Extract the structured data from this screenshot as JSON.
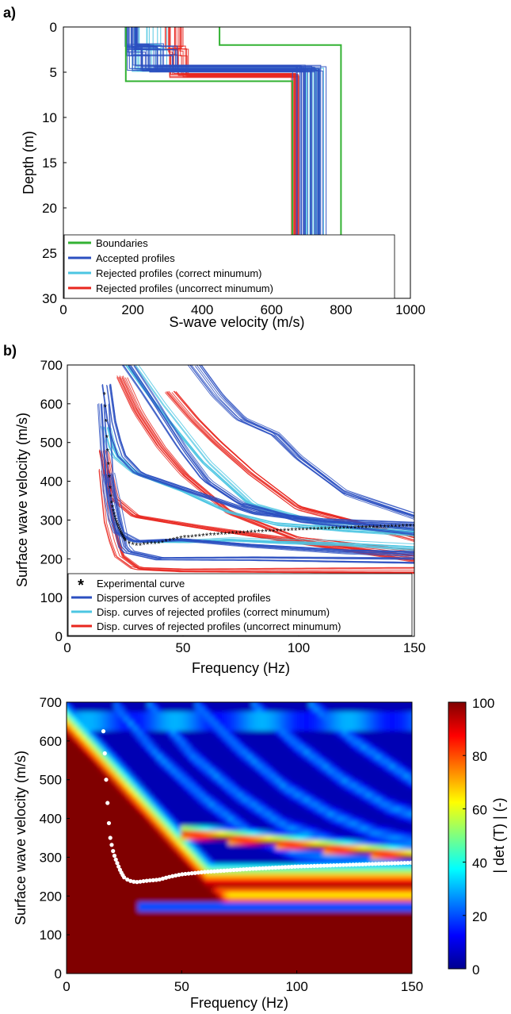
{
  "panels": {
    "a": "a)",
    "b": "b)"
  },
  "chart_data": [
    {
      "type": "line",
      "id": "panel-a",
      "xlabel": "S-wave velocity (m/s)",
      "ylabel": "Depth (m)",
      "xlim": [
        0,
        1000
      ],
      "ylim": [
        30,
        0
      ],
      "y_reversed": true,
      "x_ticks": [
        0,
        200,
        400,
        600,
        800,
        1000
      ],
      "y_ticks": [
        0,
        5,
        10,
        15,
        20,
        25,
        30
      ],
      "legend_position": "bottom-left",
      "legend": [
        {
          "label": "Boundaries",
          "color": "#33b233"
        },
        {
          "label": "Accepted profiles",
          "color": "#2b4fc0"
        },
        {
          "label": "Rejected profiles (correct minumum)",
          "color": "#4cc6e2"
        },
        {
          "label": "Rejected profiles (uncorrect minumum)",
          "color": "#e8261e"
        }
      ],
      "series": [
        {
          "name": "Boundaries",
          "color": "#33b233",
          "profiles": [
            {
              "vs": [
                450,
                450,
                800,
                800
              ],
              "depth": [
                0,
                2,
                2,
                30
              ]
            },
            {
              "vs": [
                180,
                180,
                660,
                660
              ],
              "depth": [
                0,
                6,
                6,
                30
              ]
            }
          ]
        },
        {
          "name": "Accepted profiles",
          "color": "#2b4fc0",
          "profiles_stepwise": {
            "layer1_vs": [
              175,
              215
            ],
            "layer1_bottom": [
              1.8,
              3.2
            ],
            "layer2_vs": [
              180,
              330
            ],
            "layer2_bottom": [
              4.2,
              5.0
            ],
            "halfspace_vs": [
              660,
              760
            ]
          }
        },
        {
          "name": "Rejected profiles (correct minumum)",
          "color": "#4cc6e2",
          "profiles_stepwise": {
            "layer1_vs": [
              185,
              300
            ],
            "layer1_bottom": [
              1.8,
              2.6
            ],
            "layer2_vs": [
              195,
              300
            ],
            "layer2_bottom": [
              4.4,
              5.0
            ],
            "halfspace_vs": [
              680,
              770
            ]
          }
        },
        {
          "name": "Rejected profiles (uncorrect minumum)",
          "color": "#e8261e",
          "profiles_stepwise": {
            "layer1_vs": [
              290,
              350
            ],
            "layer1_bottom": [
              2.0,
              3.2
            ],
            "layer2_vs": [
              300,
              360
            ],
            "layer2_bottom": [
              5.0,
              5.6
            ],
            "halfspace_vs": [
              655,
              690
            ]
          }
        }
      ]
    },
    {
      "type": "line",
      "id": "panel-b",
      "xlabel": "Frequency (Hz)",
      "ylabel": "Surface wave velocity (m/s)",
      "xlim": [
        0,
        150
      ],
      "ylim": [
        0,
        700
      ],
      "x_ticks": [
        0,
        50,
        100,
        150
      ],
      "y_ticks": [
        0,
        100,
        200,
        300,
        400,
        500,
        600,
        700
      ],
      "legend_position": "bottom-left",
      "legend": [
        {
          "label": "Experimental curve",
          "color": "#000000",
          "marker": "*"
        },
        {
          "label": "Dispersion curves of accepted profiles",
          "color": "#2b4fc0"
        },
        {
          "label": "Disp. curves of rejected profiles (correct minumum)",
          "color": "#4cc6e2"
        },
        {
          "label": "Disp. curves of rejected profiles (uncorrect minumum)",
          "color": "#e8261e"
        }
      ],
      "experimental_curve": {
        "x": [
          16,
          16.5,
          17,
          17.5,
          18,
          18.5,
          19,
          20,
          21,
          22,
          23,
          24,
          25,
          27,
          29,
          31,
          33,
          36,
          40,
          45,
          50,
          60,
          70,
          80,
          90,
          100,
          110,
          120,
          130,
          140,
          150
        ],
        "y": [
          625,
          580,
          520,
          470,
          420,
          380,
          350,
          320,
          300,
          285,
          270,
          258,
          248,
          240,
          237,
          236,
          238,
          240,
          242,
          250,
          256,
          262,
          266,
          270,
          273,
          276,
          278,
          280,
          282,
          284,
          286
        ]
      },
      "series": [
        {
          "name": "Dispersion curves of accepted profiles",
          "color": "#2b4fc0",
          "modes": [
            {
              "x": [
                16,
                18,
                22,
                30,
                50,
                80,
                110,
                150
              ],
              "y": [
                650,
                560,
                470,
                420,
                380,
                320,
                300,
                290
              ]
            },
            {
              "x": [
                16,
                17,
                19,
                22,
                30,
                50,
                80,
                120,
                150
              ],
              "y": [
                600,
                450,
                330,
                270,
                245,
                250,
                235,
                220,
                215
              ]
            },
            {
              "x": [
                26,
                35,
                50,
                60,
                75,
                100,
                150
              ],
              "y": [
                700,
                620,
                480,
                400,
                340,
                300,
                270
              ]
            },
            {
              "x": [
                55,
                65,
                75,
                90,
                100,
                120,
                150
              ],
              "y": [
                700,
                620,
                560,
                520,
                460,
                370,
                310
              ]
            },
            {
              "x": [
                18,
                25,
                40,
                80,
                150
              ],
              "y": [
                420,
                220,
                200,
                200,
                195
              ]
            }
          ]
        },
        {
          "name": "Disp. curves of rejected profiles (correct minumum)",
          "color": "#4cc6e2",
          "modes": [
            {
              "x": [
                17,
                20,
                30,
                50,
                70,
                90,
                120,
                150
              ],
              "y": [
                540,
                470,
                420,
                375,
                320,
                290,
                275,
                265
              ]
            },
            {
              "x": [
                28,
                40,
                60,
                80,
                110,
                150
              ],
              "y": [
                700,
                600,
                450,
                340,
                290,
                270
              ]
            },
            {
              "x": [
                30,
                50,
                70,
                90,
                120,
                150
              ],
              "y": [
                245,
                245,
                250,
                245,
                240,
                230
              ]
            }
          ]
        },
        {
          "name": "Disp. curves of rejected profiles (uncorrect minumum)",
          "color": "#e8261e",
          "modes": [
            {
              "x": [
                16,
                18,
                22,
                30,
                50,
                80,
                120,
                150
              ],
              "y": [
                430,
                300,
                210,
                175,
                170,
                170,
                170,
                170
              ]
            },
            {
              "x": [
                16,
                20,
                30,
                60,
                100,
                150
              ],
              "y": [
                480,
                360,
                310,
                280,
                245,
                200
              ]
            },
            {
              "x": [
                23,
                30,
                40,
                50,
                70,
                100,
                150
              ],
              "y": [
                670,
                580,
                490,
                420,
                320,
                250,
                215
              ]
            },
            {
              "x": [
                45,
                55,
                65,
                80,
                100,
                150
              ],
              "y": [
                630,
                560,
                500,
                420,
                330,
                250
              ]
            }
          ]
        }
      ]
    },
    {
      "type": "heatmap",
      "id": "panel-c",
      "xlabel": "Frequency (Hz)",
      "ylabel": "Surface wave velocity (m/s)",
      "xlim": [
        0,
        150
      ],
      "ylim": [
        0,
        700
      ],
      "x_ticks": [
        0,
        50,
        100,
        150
      ],
      "y_ticks": [
        0,
        100,
        200,
        300,
        400,
        500,
        600,
        700
      ],
      "colorbar": {
        "label": "| det (T) | (-)",
        "range": [
          0,
          100
        ],
        "ticks": [
          0,
          20,
          40,
          60,
          80,
          100
        ],
        "colormap": "jet"
      },
      "overlay_points": {
        "color": "#ffffff",
        "x": [
          16,
          16.5,
          17,
          17.5,
          18,
          18.5,
          19,
          20,
          21,
          22,
          23,
          24,
          25,
          27,
          29,
          31,
          33,
          36,
          40,
          45,
          50,
          60,
          70,
          80,
          90,
          100,
          110,
          120,
          130,
          140,
          150
        ],
        "y": [
          625,
          580,
          520,
          470,
          420,
          380,
          350,
          320,
          300,
          285,
          270,
          258,
          248,
          240,
          237,
          236,
          238,
          240,
          242,
          250,
          256,
          262,
          266,
          270,
          273,
          276,
          278,
          280,
          282,
          284,
          286
        ]
      }
    }
  ]
}
